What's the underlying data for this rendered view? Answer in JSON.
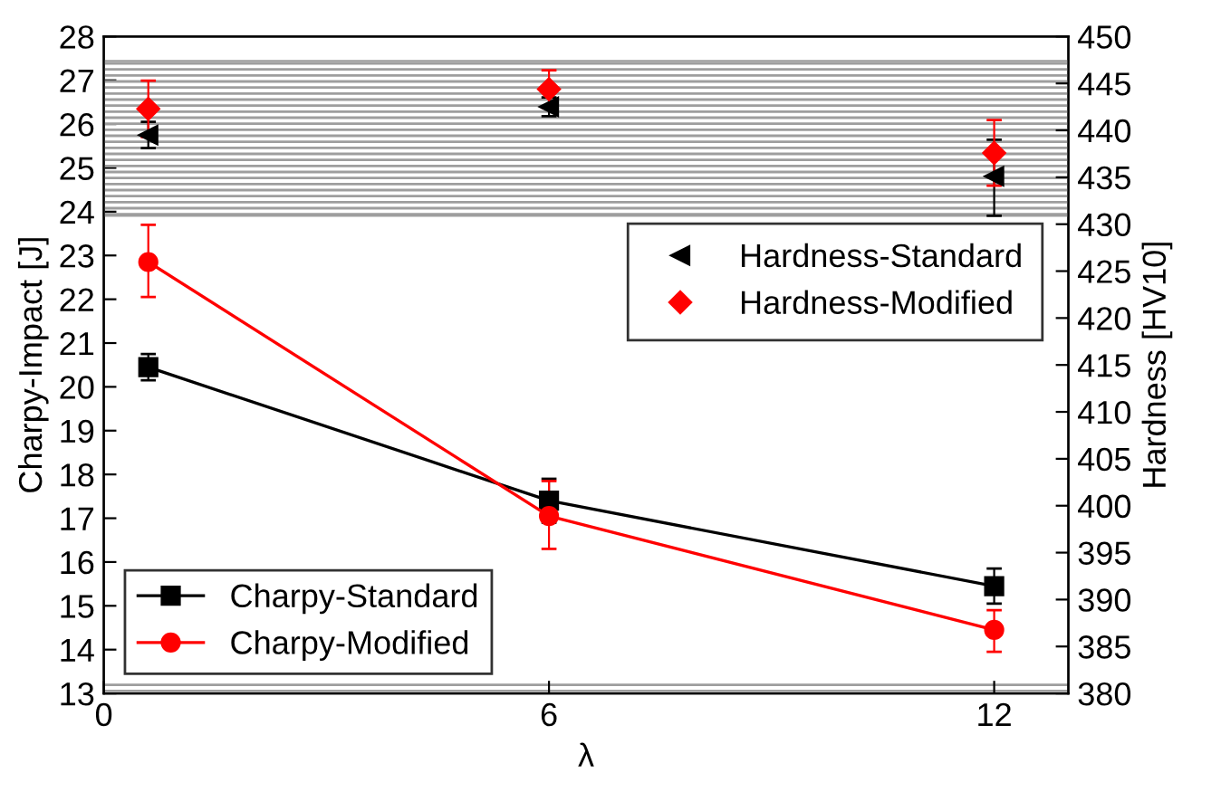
{
  "chart_data": {
    "type": "line",
    "xlabel": "λ",
    "ylabel": "Charpy-Impact [J]",
    "y2label": "Hardness [HV10]",
    "x": [
      0.6,
      6,
      12
    ],
    "xlim": [
      0,
      13
    ],
    "xticks": [
      0,
      6,
      12
    ],
    "ylim": [
      13,
      28
    ],
    "yticks": [
      13,
      14,
      15,
      16,
      17,
      18,
      19,
      20,
      21,
      22,
      23,
      24,
      25,
      26,
      27,
      28
    ],
    "y2lim": [
      380,
      450
    ],
    "y2ticks": [
      380,
      385,
      390,
      395,
      400,
      405,
      410,
      415,
      420,
      425,
      430,
      435,
      440,
      445,
      450
    ],
    "legend": "bottom left",
    "grid": false,
    "bands": [
      {
        "axis": "y2",
        "from": 430.9,
        "to": 447.4,
        "color": "#9e9e9e"
      },
      {
        "axis": "y",
        "from": 13,
        "to": 13.2,
        "color": "#9e9e9e"
      }
    ],
    "series": [
      {
        "name": "Charpy-Standard",
        "color": "#000000",
        "marker": "square",
        "line_style": "solid",
        "values": [
          20.45,
          17.4,
          15.45
        ],
        "errors": [
          0.3,
          0.5,
          0.4
        ]
      },
      {
        "name": "Charpy-Modified",
        "color": "#ff0000",
        "marker": "circle",
        "line_style": "solid",
        "values": [
          22.85,
          17.05,
          14.45
        ],
        "errors": [
          [
            22.05,
            23.7
          ],
          [
            16.3,
            17.85
          ],
          [
            13.95,
            14.9
          ]
        ]
      },
      {
        "name": "Hardness-Standard",
        "type": "scatter",
        "axis": "y2",
        "color": "#000000",
        "marker": "triangle",
        "values": [
          439.5,
          442.5,
          435.1
        ],
        "errors": [
          1.4,
          1,
          [
            430.9,
            439
          ]
        ]
      },
      {
        "name": "Hardness-Modified",
        "type": "scatter",
        "axis": "y2",
        "color": "#ff0000",
        "marker": "diamond",
        "values": [
          442.3,
          444.4,
          437.6
        ],
        "errors": [
          3,
          2,
          3.5
        ]
      }
    ]
  }
}
